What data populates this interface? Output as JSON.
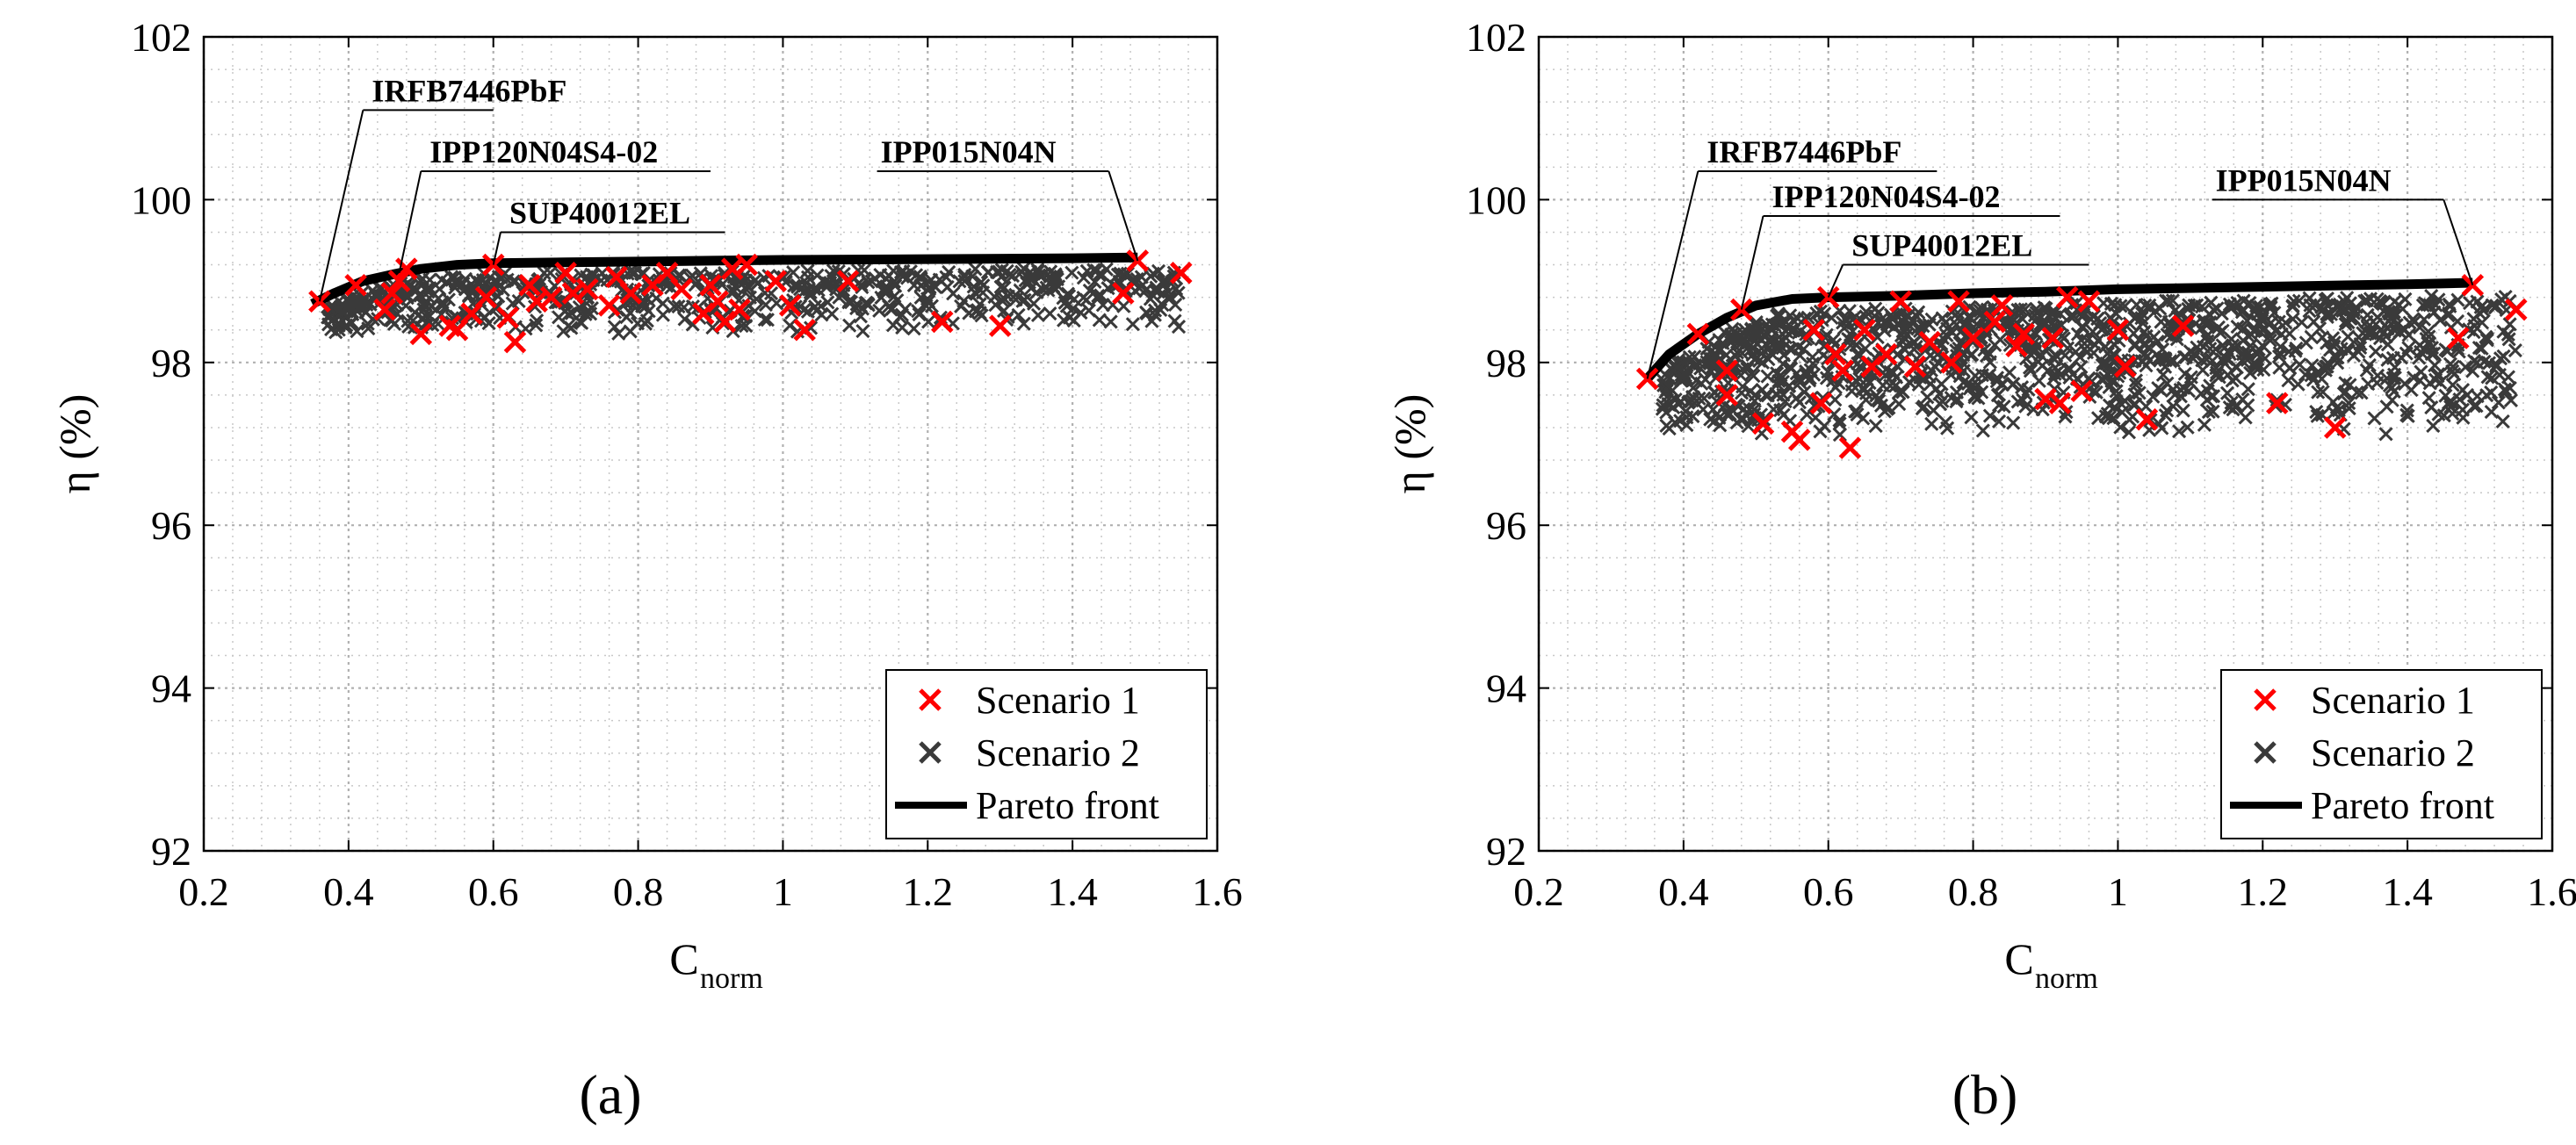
{
  "figure": {
    "panel_labels": [
      "(a)",
      "(b)"
    ]
  },
  "chart_data": [
    {
      "type": "scatter",
      "panel": "(a)",
      "title": "",
      "xlabel": "C",
      "xlabel_sub": "norm",
      "ylabel": "η (%)",
      "xlim": [
        0.2,
        1.6
      ],
      "ylim": [
        92,
        102
      ],
      "xticks": [
        0.2,
        0.4,
        0.6,
        0.8,
        1,
        1.2,
        1.4,
        1.6
      ],
      "xtick_labels": [
        "0.2",
        "0.4",
        "0.6",
        "0.8",
        "1",
        "1.2",
        "1.4",
        "1.6"
      ],
      "yticks": [
        92,
        94,
        96,
        98,
        100,
        102
      ],
      "ytick_labels": [
        "92",
        "94",
        "96",
        "98",
        "100",
        "102"
      ],
      "grid": "major and minor, dotted",
      "legend_position": "bottom-right",
      "legend": [
        "Scenario 1",
        "Scenario 2",
        "Pareto front"
      ],
      "colors": {
        "scenario1": "#ff0000",
        "scenario2": "#3a3a3a",
        "pareto": "#000000"
      },
      "series": [
        {
          "name": "Scenario 1",
          "marker": "x",
          "points": [
            [
              0.36,
              98.75
            ],
            [
              0.41,
              98.95
            ],
            [
              0.45,
              98.65
            ],
            [
              0.46,
              98.85
            ],
            [
              0.47,
              99.0
            ],
            [
              0.48,
              99.15
            ],
            [
              0.5,
              98.35
            ],
            [
              0.54,
              98.45
            ],
            [
              0.55,
              98.4
            ],
            [
              0.57,
              98.6
            ],
            [
              0.59,
              98.8
            ],
            [
              0.6,
              99.2
            ],
            [
              0.62,
              98.55
            ],
            [
              0.63,
              98.25
            ],
            [
              0.65,
              98.95
            ],
            [
              0.66,
              98.75
            ],
            [
              0.68,
              98.8
            ],
            [
              0.7,
              99.1
            ],
            [
              0.71,
              98.85
            ],
            [
              0.73,
              98.9
            ],
            [
              0.76,
              98.7
            ],
            [
              0.77,
              99.05
            ],
            [
              0.79,
              98.85
            ],
            [
              0.82,
              98.95
            ],
            [
              0.84,
              99.1
            ],
            [
              0.86,
              98.9
            ],
            [
              0.89,
              98.6
            ],
            [
              0.9,
              98.95
            ],
            [
              0.91,
              98.75
            ],
            [
              0.92,
              98.5
            ],
            [
              0.93,
              99.15
            ],
            [
              0.94,
              98.65
            ],
            [
              0.95,
              99.2
            ],
            [
              0.99,
              99.0
            ],
            [
              1.01,
              98.7
            ],
            [
              1.03,
              98.4
            ],
            [
              1.09,
              99.0
            ],
            [
              1.22,
              98.5
            ],
            [
              1.3,
              98.45
            ],
            [
              1.47,
              98.85
            ],
            [
              1.49,
              99.25
            ],
            [
              1.55,
              99.1
            ]
          ]
        },
        {
          "name": "Scenario 2",
          "marker": "x",
          "cloud": {
            "x_range": [
              0.37,
              1.55
            ],
            "y_lower": 98.35,
            "y_upper_offset": -0.12,
            "count": 700,
            "x_bias": 1.2
          }
        },
        {
          "name": "Pareto front",
          "line": [
            [
              0.35,
              98.72
            ],
            [
              0.38,
              98.85
            ],
            [
              0.42,
              99.0
            ],
            [
              0.46,
              99.08
            ],
            [
              0.5,
              99.15
            ],
            [
              0.55,
              99.2
            ],
            [
              0.6,
              99.22
            ],
            [
              0.7,
              99.23
            ],
            [
              0.8,
              99.24
            ],
            [
              0.9,
              99.25
            ],
            [
              1.0,
              99.26
            ],
            [
              1.2,
              99.27
            ],
            [
              1.4,
              99.28
            ],
            [
              1.49,
              99.29
            ]
          ]
        }
      ],
      "annotations": [
        {
          "text": "IRFB7446PbF",
          "x": 0.36,
          "y": 98.75,
          "lx": 0.42,
          "ly": 101.1,
          "line_to": 0.6
        },
        {
          "text": "IPP120N04S4-02",
          "x": 0.47,
          "y": 99.1,
          "lx": 0.5,
          "ly": 100.35,
          "line_to": 0.9
        },
        {
          "text": "SUP40012EL",
          "x": 0.6,
          "y": 99.2,
          "lx": 0.61,
          "ly": 99.6,
          "line_to": 0.92
        },
        {
          "text": "IPP015N04N",
          "x": 1.49,
          "y": 99.25,
          "lx": 1.45,
          "ly": 100.35,
          "line_to": 1.13
        }
      ]
    },
    {
      "type": "scatter",
      "panel": "(b)",
      "title": "",
      "xlabel": "C",
      "xlabel_sub": "norm",
      "ylabel": "η (%)",
      "xlim": [
        0.2,
        1.6
      ],
      "ylim": [
        92,
        102
      ],
      "xticks": [
        0.2,
        0.4,
        0.6,
        0.8,
        1,
        1.2,
        1.4,
        1.6
      ],
      "xtick_labels": [
        "0.2",
        "0.4",
        "0.6",
        "0.8",
        "1",
        "1.2",
        "1.4",
        "1.6"
      ],
      "yticks": [
        92,
        94,
        96,
        98,
        100,
        102
      ],
      "ytick_labels": [
        "92",
        "94",
        "96",
        "98",
        "100",
        "102"
      ],
      "grid": "major and minor, dotted",
      "legend_position": "bottom-right",
      "legend": [
        "Scenario 1",
        "Scenario 2",
        "Pareto front"
      ],
      "colors": {
        "scenario1": "#ff0000",
        "scenario2": "#3a3a3a",
        "pareto": "#000000"
      },
      "series": [
        {
          "name": "Scenario 1",
          "marker": "x",
          "points": [
            [
              0.35,
              97.8
            ],
            [
              0.42,
              98.35
            ],
            [
              0.46,
              97.9
            ],
            [
              0.46,
              97.6
            ],
            [
              0.48,
              98.65
            ],
            [
              0.51,
              97.25
            ],
            [
              0.55,
              97.15
            ],
            [
              0.56,
              97.05
            ],
            [
              0.58,
              98.4
            ],
            [
              0.59,
              97.5
            ],
            [
              0.6,
              98.8
            ],
            [
              0.61,
              98.1
            ],
            [
              0.62,
              97.9
            ],
            [
              0.63,
              96.95
            ],
            [
              0.65,
              98.4
            ],
            [
              0.66,
              97.95
            ],
            [
              0.68,
              98.1
            ],
            [
              0.7,
              98.75
            ],
            [
              0.72,
              97.95
            ],
            [
              0.74,
              98.25
            ],
            [
              0.77,
              98.0
            ],
            [
              0.78,
              98.75
            ],
            [
              0.8,
              98.3
            ],
            [
              0.83,
              98.5
            ],
            [
              0.84,
              98.7
            ],
            [
              0.86,
              98.2
            ],
            [
              0.87,
              98.35
            ],
            [
              0.9,
              97.55
            ],
            [
              0.91,
              98.3
            ],
            [
              0.92,
              97.5
            ],
            [
              0.93,
              98.8
            ],
            [
              0.95,
              97.65
            ],
            [
              0.96,
              98.75
            ],
            [
              1.0,
              98.4
            ],
            [
              1.01,
              97.95
            ],
            [
              1.04,
              97.3
            ],
            [
              1.09,
              98.45
            ],
            [
              1.22,
              97.5
            ],
            [
              1.3,
              97.2
            ],
            [
              1.47,
              98.3
            ],
            [
              1.49,
              98.95
            ],
            [
              1.55,
              98.65
            ]
          ]
        },
        {
          "name": "Scenario 2",
          "marker": "x",
          "cloud": {
            "x_range": [
              0.37,
              1.55
            ],
            "y_lower": 97.1,
            "y_upper_offset": -0.15,
            "count": 1300,
            "x_bias": 1.1
          }
        },
        {
          "name": "Pareto front",
          "line": [
            [
              0.35,
              97.8
            ],
            [
              0.38,
              98.1
            ],
            [
              0.42,
              98.35
            ],
            [
              0.46,
              98.55
            ],
            [
              0.5,
              98.7
            ],
            [
              0.55,
              98.78
            ],
            [
              0.6,
              98.8
            ],
            [
              0.7,
              98.82
            ],
            [
              0.8,
              98.85
            ],
            [
              0.9,
              98.87
            ],
            [
              1.0,
              98.9
            ],
            [
              1.2,
              98.93
            ],
            [
              1.4,
              98.96
            ],
            [
              1.49,
              98.98
            ]
          ]
        }
      ],
      "annotations": [
        {
          "text": "IRFB7446PbF",
          "x": 0.35,
          "y": 97.8,
          "lx": 0.42,
          "ly": 100.35,
          "line_to": 0.75
        },
        {
          "text": "IPP120N04S4-02",
          "x": 0.48,
          "y": 98.65,
          "lx": 0.51,
          "ly": 99.8,
          "line_to": 0.92
        },
        {
          "text": "SUP40012EL",
          "x": 0.6,
          "y": 98.8,
          "lx": 0.62,
          "ly": 99.2,
          "line_to": 0.96
        },
        {
          "text": "IPP015N04N",
          "x": 1.49,
          "y": 98.95,
          "lx": 1.45,
          "ly": 100.0,
          "line_to": 1.13
        }
      ]
    }
  ]
}
